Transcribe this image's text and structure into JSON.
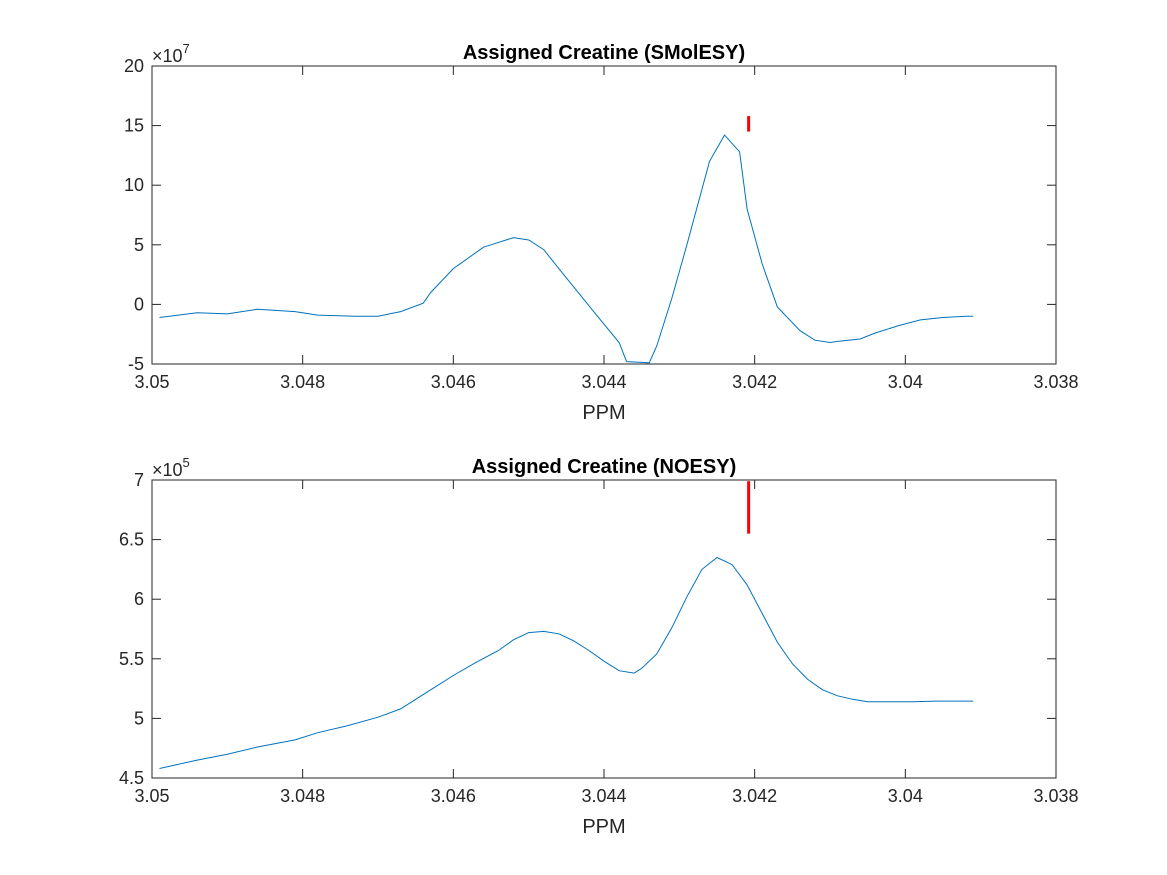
{
  "chart_data": [
    {
      "type": "line",
      "title": "Assigned Creatine (SMolESY)",
      "xlabel": "PPM",
      "ylabel": "",
      "x_reversed": true,
      "xlim": [
        3.038,
        3.05
      ],
      "xticks": [
        3.05,
        3.048,
        3.046,
        3.044,
        3.042,
        3.04,
        3.038
      ],
      "xtick_labels": [
        "3.05",
        "3.048",
        "3.046",
        "3.044",
        "3.042",
        "3.04",
        "3.038"
      ],
      "ylim": [
        -5,
        20
      ],
      "yticks": [
        -5,
        0,
        5,
        10,
        15,
        20
      ],
      "ytick_labels": [
        "-5",
        "0",
        "5",
        "10",
        "15",
        "20"
      ],
      "y_multiplier_base": "×10",
      "y_multiplier_exp": "7",
      "grid": false,
      "series": [
        {
          "color": "#0072bd",
          "x": [
            3.0499,
            3.0494,
            3.049,
            3.0486,
            3.0481,
            3.0478,
            3.0473,
            3.047,
            3.0467,
            3.0464,
            3.0463,
            3.046,
            3.0456,
            3.0455,
            3.0452,
            3.045,
            3.0448,
            3.0446,
            3.0441,
            3.0438,
            3.0437,
            3.0434,
            3.0433,
            3.0431,
            3.0429,
            3.0426,
            3.0424,
            3.0422,
            3.0421,
            3.0419,
            3.0417,
            3.0414,
            3.0412,
            3.041,
            3.0409,
            3.0406,
            3.0404,
            3.0401,
            3.0398,
            3.0395,
            3.0392,
            3.0391
          ],
          "y": [
            -1.1,
            -0.7,
            -0.8,
            -0.4,
            -0.6,
            -0.9,
            -1.0,
            -1.0,
            -0.6,
            0.1,
            1.0,
            3.0,
            4.8,
            5.0,
            5.6,
            5.4,
            4.6,
            3.0,
            -0.9,
            -3.2,
            -4.8,
            -4.9,
            -3.5,
            0.5,
            5.0,
            12.0,
            14.2,
            12.8,
            8.0,
            3.4,
            -0.2,
            -2.2,
            -3.0,
            -3.2,
            -3.1,
            -2.9,
            -2.4,
            -1.8,
            -1.3,
            -1.1,
            -1.0,
            -1.0
          ],
          "marker_x": 3.04208,
          "marker_y_range": [
            14.5,
            15.8
          ],
          "marker_color": "#ff0000"
        }
      ]
    },
    {
      "type": "line",
      "title": "Assigned Creatine (NOESY)",
      "xlabel": "PPM",
      "ylabel": "",
      "x_reversed": true,
      "xlim": [
        3.038,
        3.05
      ],
      "xticks": [
        3.05,
        3.048,
        3.046,
        3.044,
        3.042,
        3.04,
        3.038
      ],
      "xtick_labels": [
        "3.05",
        "3.048",
        "3.046",
        "3.044",
        "3.042",
        "3.04",
        "3.038"
      ],
      "ylim": [
        4.5,
        7
      ],
      "yticks": [
        4.5,
        5,
        5.5,
        6,
        6.5,
        7
      ],
      "ytick_labels": [
        "4.5",
        "5",
        "5.5",
        "6",
        "6.5",
        "7"
      ],
      "y_multiplier_base": "×10",
      "y_multiplier_exp": "5",
      "grid": false,
      "series": [
        {
          "color": "#0072bd",
          "x": [
            3.0499,
            3.0494,
            3.049,
            3.0486,
            3.0481,
            3.0478,
            3.0474,
            3.047,
            3.0467,
            3.0465,
            3.0463,
            3.046,
            3.0457,
            3.0454,
            3.0452,
            3.045,
            3.0448,
            3.0446,
            3.0444,
            3.0442,
            3.044,
            3.0438,
            3.0436,
            3.0435,
            3.0433,
            3.0431,
            3.0429,
            3.0427,
            3.0425,
            3.0423,
            3.0421,
            3.0419,
            3.0417,
            3.0415,
            3.0413,
            3.0411,
            3.0409,
            3.0407,
            3.0405,
            3.0403,
            3.0401,
            3.0399,
            3.0396,
            3.0391
          ],
          "y": [
            4.58,
            4.65,
            4.7,
            4.76,
            4.82,
            4.88,
            4.94,
            5.01,
            5.08,
            5.16,
            5.24,
            5.36,
            5.47,
            5.57,
            5.66,
            5.72,
            5.73,
            5.71,
            5.65,
            5.57,
            5.48,
            5.4,
            5.38,
            5.42,
            5.54,
            5.76,
            6.02,
            6.25,
            6.35,
            6.29,
            6.12,
            5.88,
            5.64,
            5.46,
            5.33,
            5.24,
            5.19,
            5.16,
            5.14,
            5.14,
            5.14,
            5.14,
            5.145,
            5.145
          ],
          "marker_x": 3.04208,
          "marker_y_range": [
            6.55,
            6.99
          ],
          "marker_color": "#ff0000"
        }
      ]
    }
  ]
}
